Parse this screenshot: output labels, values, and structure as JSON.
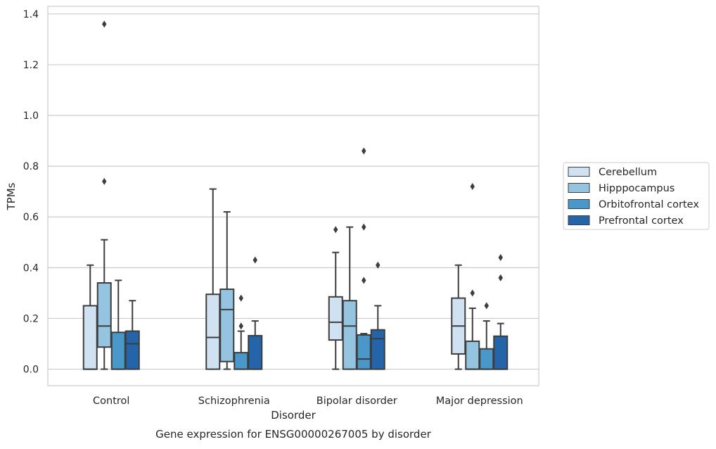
{
  "caption": "Gene expression for ENSG00000267005 by disorder",
  "chart_data": {
    "type": "boxplot",
    "title": "",
    "xlabel": "Disorder",
    "ylabel": "TPMs",
    "categories": [
      "Control",
      "Schizophrenia",
      "Bipolar disorder",
      "Major depression"
    ],
    "ylim": [
      -0.065,
      1.43
    ],
    "yticks": [
      0.0,
      0.2,
      0.4,
      0.6,
      0.8,
      1.0,
      1.2,
      1.4
    ],
    "ytick_labels": [
      "0.0",
      "0.2",
      "0.4",
      "0.6",
      "0.8",
      "1.0",
      "1.2",
      "1.4"
    ],
    "grid": "horizontal",
    "legend_position": "right",
    "series": [
      {
        "name": "Cerebellum",
        "color": "#d0e1f2",
        "boxes": [
          {
            "whislo": 0.0,
            "q1": 0.0,
            "med": 0.0,
            "q3": 0.25,
            "whishi": 0.41,
            "fliers": []
          },
          {
            "whislo": 0.0,
            "q1": 0.0,
            "med": 0.125,
            "q3": 0.295,
            "whishi": 0.71,
            "fliers": []
          },
          {
            "whislo": 0.0,
            "q1": 0.115,
            "med": 0.185,
            "q3": 0.285,
            "whishi": 0.46,
            "fliers": [
              0.55
            ]
          },
          {
            "whislo": 0.0,
            "q1": 0.06,
            "med": 0.17,
            "q3": 0.28,
            "whishi": 0.41,
            "fliers": []
          }
        ]
      },
      {
        "name": "Hipppocampus",
        "color": "#94c4df",
        "boxes": [
          {
            "whislo": 0.0,
            "q1": 0.087,
            "med": 0.17,
            "q3": 0.34,
            "whishi": 0.51,
            "fliers": [
              0.74,
              1.36
            ]
          },
          {
            "whislo": 0.0,
            "q1": 0.03,
            "med": 0.235,
            "q3": 0.315,
            "whishi": 0.62,
            "fliers": []
          },
          {
            "whislo": 0.0,
            "q1": 0.0,
            "med": 0.17,
            "q3": 0.27,
            "whishi": 0.56,
            "fliers": []
          },
          {
            "whislo": 0.0,
            "q1": 0.0,
            "med": 0.0,
            "q3": 0.11,
            "whishi": 0.24,
            "fliers": [
              0.3,
              0.72
            ]
          }
        ]
      },
      {
        "name": "Orbitofrontal cortex",
        "color": "#4a98c9",
        "boxes": [
          {
            "whislo": 0.0,
            "q1": 0.0,
            "med": 0.0,
            "q3": 0.145,
            "whishi": 0.35,
            "fliers": []
          },
          {
            "whislo": 0.0,
            "q1": 0.0,
            "med": 0.0,
            "q3": 0.065,
            "whishi": 0.15,
            "fliers": [
              0.17,
              0.28
            ]
          },
          {
            "whislo": 0.0,
            "q1": 0.0,
            "med": 0.04,
            "q3": 0.135,
            "whishi": 0.14,
            "fliers": [
              0.35,
              0.56,
              0.86
            ]
          },
          {
            "whislo": 0.0,
            "q1": 0.0,
            "med": 0.0,
            "q3": 0.08,
            "whishi": 0.19,
            "fliers": [
              0.25
            ]
          }
        ]
      },
      {
        "name": "Prefrontal cortex",
        "color": "#2464a9",
        "boxes": [
          {
            "whislo": 0.0,
            "q1": 0.0,
            "med": 0.1,
            "q3": 0.15,
            "whishi": 0.27,
            "fliers": []
          },
          {
            "whislo": 0.0,
            "q1": 0.0,
            "med": 0.0,
            "q3": 0.132,
            "whishi": 0.19,
            "fliers": [
              0.43
            ]
          },
          {
            "whislo": 0.0,
            "q1": 0.0,
            "med": 0.12,
            "q3": 0.155,
            "whishi": 0.25,
            "fliers": [
              0.41
            ]
          },
          {
            "whislo": 0.0,
            "q1": 0.0,
            "med": 0.0,
            "q3": 0.13,
            "whishi": 0.18,
            "fliers": [
              0.36,
              0.44
            ]
          }
        ]
      }
    ]
  }
}
